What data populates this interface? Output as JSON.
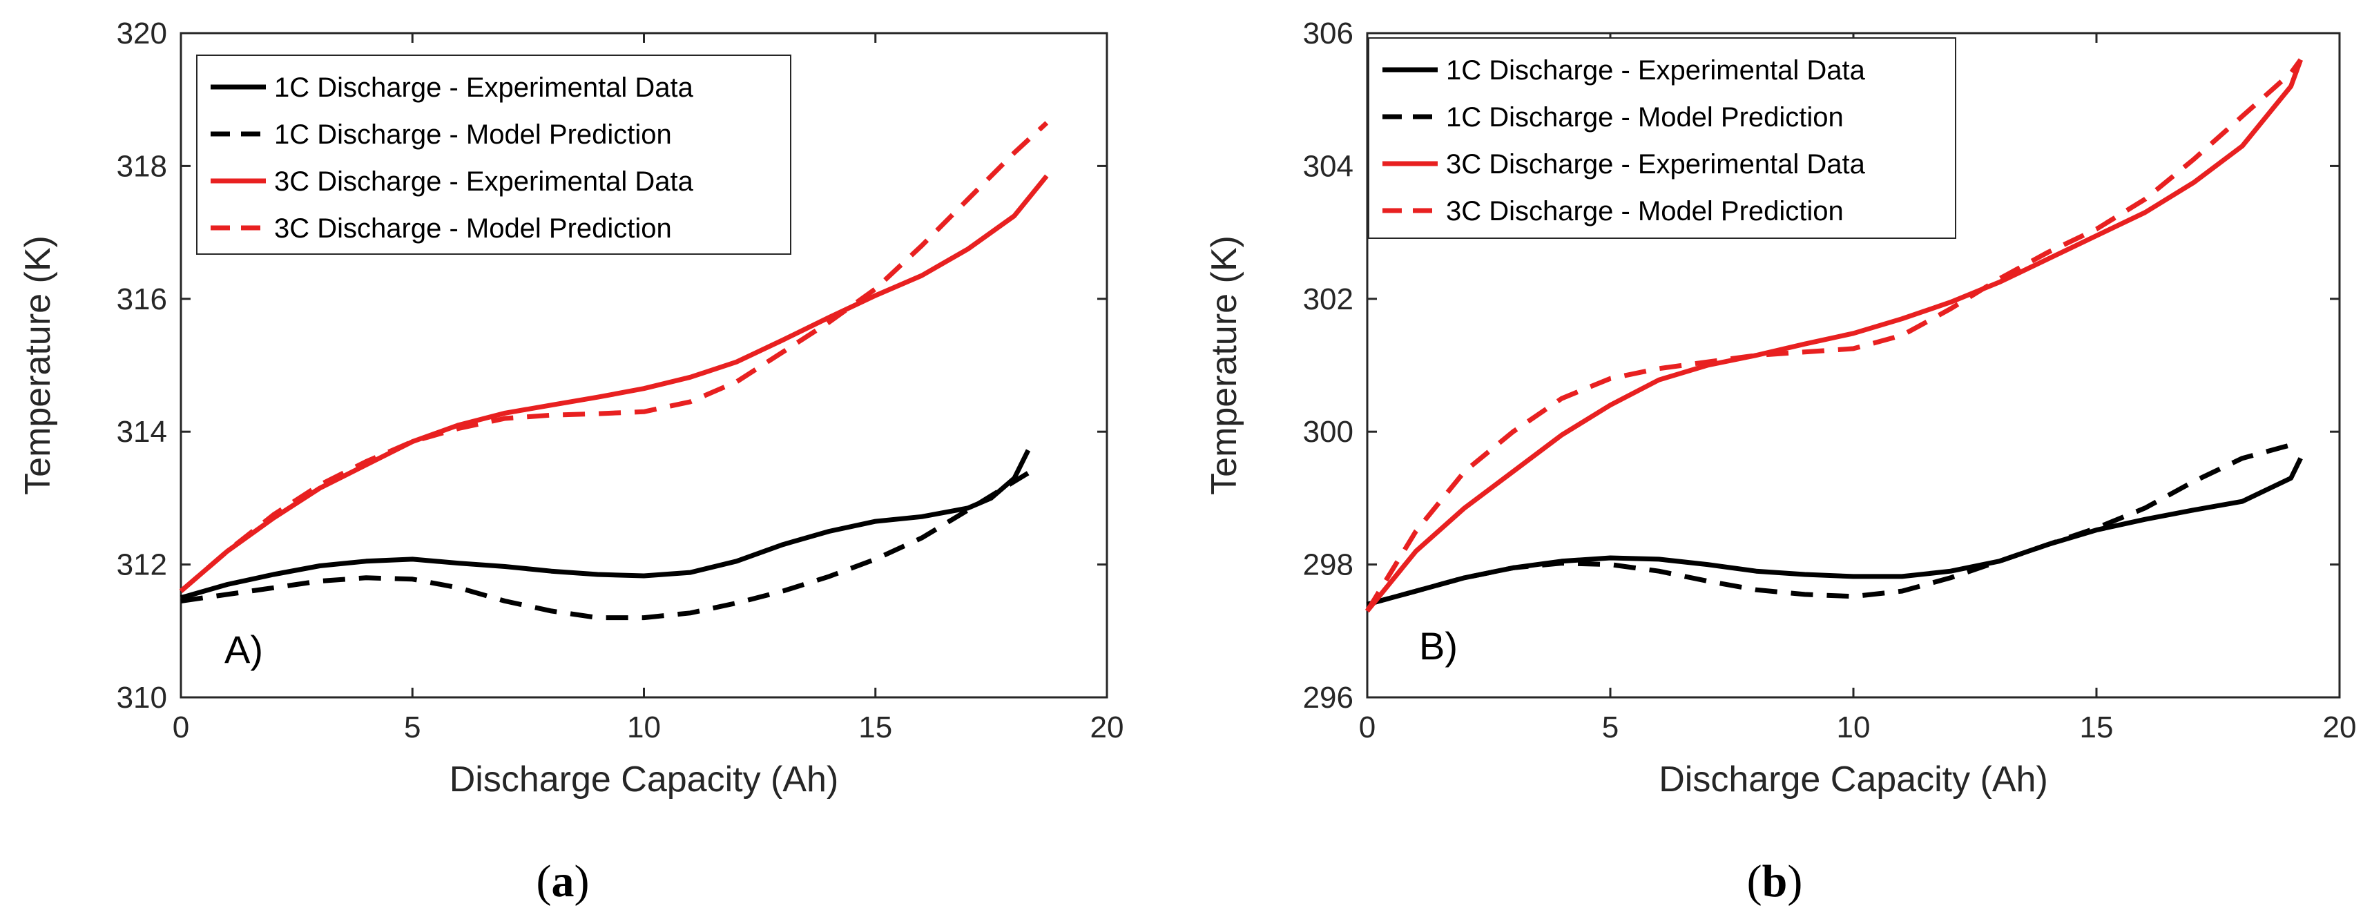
{
  "chart_data": [
    {
      "type": "line",
      "panel_label": "A)",
      "caption_letter": "a",
      "xlabel": "Discharge Capacity (Ah)",
      "ylabel": "Temperature (K)",
      "xlim": [
        0,
        20
      ],
      "ylim": [
        310,
        320
      ],
      "xticks": [
        0,
        5,
        10,
        15,
        20
      ],
      "yticks": [
        310,
        312,
        314,
        316,
        318,
        320
      ],
      "legend_position": "top-left",
      "series": [
        {
          "name": "1C Discharge - Experimental Data",
          "color": "#000000",
          "dash": "solid",
          "x": [
            0,
            1,
            2,
            3,
            4,
            5,
            6,
            7,
            8,
            9,
            10,
            11,
            12,
            13,
            14,
            15,
            16,
            17,
            17.5,
            18,
            18.3
          ],
          "y": [
            311.5,
            311.7,
            311.85,
            311.98,
            312.05,
            312.08,
            312.02,
            311.97,
            311.9,
            311.85,
            311.83,
            311.88,
            312.05,
            312.3,
            312.5,
            312.65,
            312.72,
            312.85,
            313.0,
            313.3,
            313.72
          ]
        },
        {
          "name": "1C Discharge - Model Prediction",
          "color": "#000000",
          "dash": "dashed",
          "x": [
            0,
            1,
            2,
            3,
            4,
            5,
            6,
            7,
            8,
            9,
            10,
            11,
            12,
            13,
            14,
            15,
            16,
            17,
            18,
            18.4
          ],
          "y": [
            311.45,
            311.55,
            311.65,
            311.75,
            311.8,
            311.78,
            311.65,
            311.45,
            311.3,
            311.2,
            311.2,
            311.27,
            311.42,
            311.6,
            311.82,
            312.08,
            312.4,
            312.82,
            313.25,
            313.42
          ]
        },
        {
          "name": "3C Discharge - Experimental Data",
          "color": "#e82020",
          "dash": "solid",
          "x": [
            0,
            1,
            2,
            3,
            4,
            5,
            6,
            7,
            8,
            9,
            10,
            11,
            12,
            13,
            14,
            15,
            16,
            17,
            18,
            18.7
          ],
          "y": [
            311.6,
            312.2,
            312.7,
            313.15,
            313.5,
            313.85,
            314.1,
            314.28,
            314.4,
            314.52,
            314.65,
            314.82,
            315.05,
            315.38,
            315.72,
            316.05,
            316.35,
            316.75,
            317.25,
            317.85
          ]
        },
        {
          "name": "3C Discharge - Model Prediction",
          "color": "#e82020",
          "dash": "dashed",
          "x": [
            0,
            1,
            2,
            3,
            4,
            5,
            6,
            7,
            8,
            9,
            10,
            11,
            12,
            13,
            14,
            15,
            16,
            17,
            18,
            18.7
          ],
          "y": [
            311.6,
            312.2,
            312.75,
            313.2,
            313.55,
            313.85,
            314.05,
            314.2,
            314.25,
            314.27,
            314.3,
            314.45,
            314.75,
            315.2,
            315.65,
            316.15,
            316.8,
            317.5,
            318.2,
            318.65
          ]
        }
      ]
    },
    {
      "type": "line",
      "panel_label": "B)",
      "caption_letter": "b",
      "xlabel": "Discharge Capacity (Ah)",
      "ylabel": "Temperature (K)",
      "xlim": [
        0,
        20
      ],
      "ylim": [
        296,
        306
      ],
      "xticks": [
        0,
        5,
        10,
        15,
        20
      ],
      "yticks": [
        296,
        298,
        300,
        302,
        304,
        306
      ],
      "legend_position": "top-left",
      "series": [
        {
          "name": "1C Discharge - Experimental Data",
          "color": "#000000",
          "dash": "solid",
          "x": [
            0,
            1,
            2,
            3,
            4,
            5,
            6,
            7,
            8,
            9,
            10,
            11,
            12,
            13,
            14,
            15,
            16,
            17,
            18,
            19,
            19.2
          ],
          "y": [
            297.4,
            297.6,
            297.8,
            297.95,
            298.05,
            298.1,
            298.08,
            298.0,
            297.9,
            297.85,
            297.82,
            297.82,
            297.9,
            298.05,
            298.3,
            298.52,
            298.68,
            298.82,
            298.95,
            299.3,
            299.6
          ]
        },
        {
          "name": "1C Discharge - Model Prediction",
          "color": "#000000",
          "dash": "dashed",
          "x": [
            0,
            1,
            2,
            3,
            4,
            5,
            6,
            7,
            8,
            9,
            10,
            11,
            12,
            13,
            14,
            15,
            16,
            17,
            18,
            19,
            19.2
          ],
          "y": [
            297.4,
            297.6,
            297.8,
            297.95,
            298.02,
            298.0,
            297.9,
            297.75,
            297.62,
            297.55,
            297.52,
            297.6,
            297.8,
            298.05,
            298.3,
            298.55,
            298.85,
            299.25,
            299.6,
            299.8,
            299.85
          ]
        },
        {
          "name": "3C Discharge - Experimental Data",
          "color": "#e82020",
          "dash": "solid",
          "x": [
            0,
            1,
            2,
            3,
            4,
            5,
            6,
            7,
            8,
            9,
            10,
            11,
            12,
            13,
            14,
            15,
            16,
            17,
            18,
            19,
            19.2
          ],
          "y": [
            297.3,
            298.2,
            298.85,
            299.4,
            299.95,
            300.4,
            300.78,
            301.0,
            301.15,
            301.32,
            301.48,
            301.7,
            301.95,
            302.25,
            302.6,
            302.95,
            303.3,
            303.75,
            304.3,
            305.2,
            305.6
          ]
        },
        {
          "name": "3C Discharge - Model Prediction",
          "color": "#e82020",
          "dash": "dashed",
          "x": [
            0,
            1,
            2,
            3,
            4,
            5,
            6,
            7,
            8,
            9,
            10,
            11,
            12,
            13,
            14,
            15,
            16,
            17,
            18,
            19,
            19.2
          ],
          "y": [
            297.3,
            298.5,
            299.4,
            300.0,
            300.5,
            300.8,
            300.95,
            301.05,
            301.15,
            301.2,
            301.25,
            301.45,
            301.85,
            302.3,
            302.7,
            303.05,
            303.5,
            304.1,
            304.75,
            305.4,
            305.6
          ]
        }
      ]
    }
  ]
}
